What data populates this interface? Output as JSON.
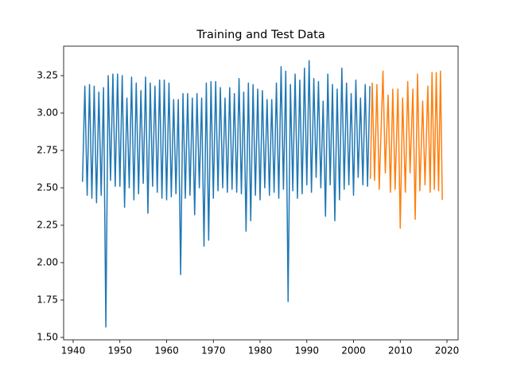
{
  "chart_data": {
    "type": "line",
    "title": "Training and Test Data",
    "xlim": [
      1937.96,
      2022.38
    ],
    "ylim": [
      1.484,
      3.447
    ],
    "xticks": [
      1940,
      1950,
      1960,
      1970,
      1980,
      1990,
      2000,
      2010,
      2020
    ],
    "yticks": [
      {
        "value": 1.5,
        "label": "1.50"
      },
      {
        "value": 1.75,
        "label": "1.75"
      },
      {
        "value": 2.0,
        "label": "2.00"
      },
      {
        "value": 2.25,
        "label": "2.25"
      },
      {
        "value": 2.5,
        "label": "2.50"
      },
      {
        "value": 2.75,
        "label": "2.75"
      },
      {
        "value": 3.0,
        "label": "3.00"
      },
      {
        "value": 3.25,
        "label": "3.25"
      }
    ],
    "grid": false,
    "series": [
      {
        "color": "#1f77b4",
        "x": [
          1942,
          1942.5,
          1943,
          1943.5,
          1944,
          1944.5,
          1945,
          1945.5,
          1946,
          1946.5,
          1947,
          1947.5,
          1948,
          1948.5,
          1949,
          1949.5,
          1950,
          1950.5,
          1951,
          1951.5,
          1952,
          1952.5,
          1953,
          1953.5,
          1954,
          1954.5,
          1955,
          1955.5,
          1956,
          1956.5,
          1957,
          1957.5,
          1958,
          1958.5,
          1959,
          1959.5,
          1960,
          1960.5,
          1961,
          1961.5,
          1962,
          1962.5,
          1963,
          1963.5,
          1964,
          1964.5,
          1965,
          1965.5,
          1966,
          1966.5,
          1967,
          1967.5,
          1968,
          1968.5,
          1969,
          1969.5,
          1970,
          1970.5,
          1971,
          1971.5,
          1972,
          1972.5,
          1973,
          1973.5,
          1974,
          1974.5,
          1975,
          1975.5,
          1976,
          1976.5,
          1977,
          1977.5,
          1978,
          1978.5,
          1979,
          1979.5,
          1980,
          1980.5,
          1981,
          1981.5,
          1982,
          1982.5,
          1983,
          1983.5,
          1984,
          1984.5,
          1985,
          1985.5,
          1986,
          1986.5,
          1987,
          1987.5,
          1988,
          1988.5,
          1989,
          1989.5,
          1990,
          1990.5,
          1991,
          1991.5,
          1992,
          1992.5,
          1993,
          1993.5,
          1994,
          1994.5,
          1995,
          1995.5,
          1996,
          1996.5,
          1997,
          1997.5,
          1998,
          1998.5,
          1999,
          1999.5,
          2000,
          2000.5,
          2001,
          2001.5,
          2002,
          2002.5,
          2003,
          2003.5
        ],
        "values": [
          2.54,
          3.18,
          2.45,
          3.19,
          2.43,
          3.18,
          2.4,
          3.14,
          2.45,
          3.17,
          1.57,
          3.25,
          2.55,
          3.26,
          2.51,
          3.26,
          2.51,
          3.25,
          2.37,
          3.1,
          2.5,
          3.24,
          2.42,
          3.2,
          2.46,
          3.15,
          2.53,
          3.24,
          2.33,
          3.2,
          2.51,
          3.18,
          2.47,
          3.22,
          2.43,
          3.22,
          2.42,
          3.2,
          2.44,
          3.09,
          2.46,
          3.09,
          1.92,
          3.13,
          2.43,
          3.13,
          2.45,
          3.1,
          2.32,
          3.13,
          2.5,
          3.1,
          2.11,
          3.2,
          2.15,
          3.21,
          2.43,
          3.21,
          2.48,
          3.17,
          2.5,
          3.1,
          2.47,
          3.17,
          2.49,
          3.13,
          2.47,
          3.23,
          2.46,
          3.14,
          2.21,
          3.2,
          2.28,
          3.19,
          2.45,
          3.16,
          2.42,
          3.15,
          2.5,
          3.09,
          2.45,
          3.09,
          2.47,
          3.2,
          2.43,
          3.31,
          2.49,
          3.28,
          1.74,
          3.19,
          2.48,
          3.26,
          2.43,
          3.22,
          2.46,
          3.3,
          2.52,
          3.35,
          2.47,
          3.23,
          2.57,
          3.21,
          2.5,
          3.08,
          2.31,
          3.26,
          2.52,
          3.19,
          2.28,
          3.16,
          2.42,
          3.3,
          2.49,
          3.2,
          2.52,
          3.13,
          2.45,
          3.22,
          2.57,
          3.1,
          2.52,
          3.19,
          2.51,
          3.18
        ]
      },
      {
        "color": "#ff7f0e",
        "x": [
          2003.6,
          2004.0,
          2004.5,
          2005.0,
          2005.5,
          2006.3,
          2006.8,
          2007.4,
          2007.9,
          2008.4,
          2008.9,
          2009.5,
          2010.0,
          2010.5,
          2011.1,
          2011.6,
          2012.1,
          2012.7,
          2013.2,
          2013.7,
          2014.2,
          2014.8,
          2015.3,
          2015.9,
          2016.4,
          2016.8,
          2017.3,
          2017.7,
          2018.2,
          2018.6,
          2019.0
        ],
        "values": [
          2.56,
          3.2,
          2.55,
          3.19,
          2.49,
          3.28,
          2.6,
          3.12,
          2.47,
          3.16,
          2.49,
          3.16,
          2.23,
          3.1,
          2.47,
          3.21,
          2.6,
          3.16,
          2.29,
          3.26,
          2.48,
          3.08,
          2.52,
          3.18,
          2.47,
          3.27,
          2.49,
          3.27,
          2.48,
          3.28,
          2.42
        ]
      }
    ]
  }
}
